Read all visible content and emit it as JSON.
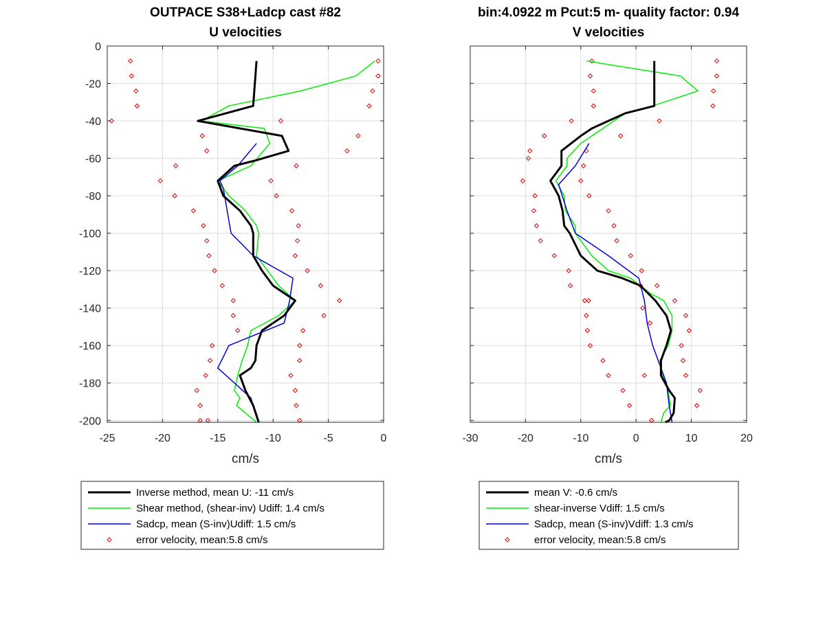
{
  "chart_data": [
    {
      "type": "line",
      "title": "OUTPACE S38+Ladcp cast #82",
      "subtitle": "U velocities",
      "xlabel": "cm/s",
      "ylabel": "",
      "xlim": [
        -25,
        0
      ],
      "ylim": [
        -201,
        0
      ],
      "xticks": [
        "-25",
        "-20",
        "-15",
        "-10",
        "-5",
        "0"
      ],
      "yticks": [
        "0",
        "-20",
        "-40",
        "-60",
        "-80",
        "-100",
        "-120",
        "-140",
        "-160",
        "-180",
        "-200"
      ],
      "grid": true,
      "legend_position": "below",
      "series": [
        {
          "name": "Inverse method, mean U:  -11 cm/s",
          "color": "#000000",
          "style": "line",
          "x": [
            -11.5,
            -11.6,
            -11.8,
            -16.8,
            -9.2,
            -8.6,
            -11.5,
            -13.5,
            -15.0,
            -14.5,
            -13.0,
            -12.0,
            -11.8,
            -11.8,
            -11.0,
            -10.0,
            -9.0,
            -8.0,
            -9.0,
            -11.0,
            -11.5,
            -11.6,
            -12.0,
            -13.0,
            -12.5,
            -11.8,
            -11.3
          ],
          "y": [
            -8,
            -16,
            -32,
            -40,
            -48,
            -56,
            -61,
            -64,
            -72,
            -80,
            -88,
            -96,
            -100,
            -112,
            -120,
            -128,
            -132,
            -136,
            -144,
            -152,
            -160,
            -168,
            -172,
            -176,
            -184,
            -192,
            -201
          ]
        },
        {
          "name": "Shear method, (shear-inv)  Udiff:  1.4 cm/s",
          "color": "#00ee00",
          "style": "line",
          "x": [
            -0.8,
            -2.5,
            -7.5,
            -14.0,
            -16.5,
            -10.8,
            -10.3,
            -12.0,
            -15.0,
            -14.0,
            -12.5,
            -11.5,
            -11.3,
            -11.5,
            -10.5,
            -9.5,
            -8.0,
            -9.5,
            -12.0,
            -12.3,
            -12.8,
            -13.0,
            -13.2,
            -13.5,
            -13.0,
            -13.3,
            -11.5
          ],
          "y": [
            -8,
            -16,
            -24,
            -32,
            -40,
            -44,
            -52,
            -64,
            -72,
            -80,
            -88,
            -96,
            -100,
            -112,
            -120,
            -128,
            -136,
            -144,
            -152,
            -160,
            -168,
            -172,
            -176,
            -184,
            -188,
            -192,
            -201
          ]
        },
        {
          "name": "Sadcp, mean (S-inv)Udiff: 1.5 cm/s",
          "color": "#0000dd",
          "style": "line",
          "x": [
            -11.5,
            -13.2,
            -14.8,
            -14.5,
            -13.8,
            -11.8,
            -8.2,
            -8.5,
            -9.0,
            -14.0,
            -15.0,
            -13.5,
            -12.0,
            -11.6
          ],
          "y": [
            -52,
            -64,
            -72,
            -76,
            -100,
            -112,
            -124,
            -136,
            -148,
            -160,
            -172,
            -180,
            -188,
            -196
          ]
        },
        {
          "name": "error velocity, mean:5.8 cm/s",
          "color": "#dd0000",
          "style": "markers",
          "x": [
            -22.9,
            -22.8,
            -22.4,
            -22.3,
            -24.6,
            -16.4,
            -16.0,
            -18.8,
            -20.2,
            -18.9,
            -17.2,
            -16.3,
            -16.0,
            -15.8,
            -15.3,
            -14.6,
            -13.6,
            -13.6,
            -13.2,
            -15.5,
            -15.7,
            -16.1,
            -16.9,
            -16.6,
            -16.6,
            -15.9,
            -0.5,
            -0.5,
            -1.0,
            -1.3,
            -9.3,
            -2.3,
            -3.3,
            -7.9,
            -10.2,
            -9.7,
            -8.3,
            -7.7,
            -7.8,
            -8.0,
            -6.9,
            -5.7,
            -4.0,
            -5.4,
            -7.3,
            -7.6,
            -7.6,
            -8.4,
            -8.0,
            -7.9,
            -7.6
          ],
          "y": [
            -8,
            -16,
            -24,
            -32,
            -40,
            -48,
            -56,
            -64,
            -72,
            -80,
            -88,
            -96,
            -104,
            -112,
            -120,
            -128,
            -136,
            -144,
            -152,
            -160,
            -168,
            -176,
            -184,
            -192,
            -200,
            -200,
            -8,
            -16,
            -24,
            -32,
            -40,
            -48,
            -56,
            -64,
            -72,
            -80,
            -88,
            -96,
            -104,
            -112,
            -120,
            -128,
            -136,
            -144,
            -152,
            -160,
            -168,
            -176,
            -184,
            -192,
            -200
          ]
        }
      ]
    },
    {
      "type": "line",
      "title": "bin:4.0922 m  Pcut:5 m- quality factor:  0.94",
      "subtitle": "V velocities",
      "xlabel": "cm/s",
      "ylabel": "",
      "xlim": [
        -30,
        20
      ],
      "ylim": [
        -201,
        0
      ],
      "xticks": [
        "-30",
        "-20",
        "-10",
        "0",
        "10",
        "20"
      ],
      "yticks": [],
      "grid": true,
      "legend_position": "below",
      "series": [
        {
          "name": "mean V:  -0.6 cm/s",
          "color": "#000000",
          "style": "line",
          "x": [
            3.3,
            3.3,
            3.3,
            3.3,
            -2.0,
            -8.0,
            -10.0,
            -13.5,
            -13.5,
            -15.5,
            -14.0,
            -13.3,
            -13.0,
            -12.0,
            -10.0,
            -7.0,
            -2.5,
            0.8,
            3.5,
            5.5,
            6.3,
            5.5,
            4.5,
            4.5,
            6.0,
            7.0,
            6.8,
            6.0,
            5.3
          ],
          "y": [
            -8,
            -16,
            -24,
            -32,
            -36,
            -44,
            -48,
            -56,
            -64,
            -72,
            -80,
            -88,
            -96,
            -100,
            -112,
            -120,
            -124,
            -128,
            -136,
            -144,
            -152,
            -160,
            -168,
            -176,
            -184,
            -188,
            -196,
            -200,
            -201
          ]
        },
        {
          "name": "shear-inverse Vdiff:  1.5 cm/s",
          "color": "#00ee00",
          "style": "line",
          "x": [
            -9.0,
            8.0,
            11.2,
            3.0,
            -2.0,
            -6.0,
            -10.0,
            -12.5,
            -12.5,
            -14.5,
            -13.0,
            -12.8,
            -11.0,
            -11.0,
            -8.0,
            -5.0,
            -1.0,
            2.5,
            5.0,
            6.5,
            6.5,
            5.8,
            4.3,
            4.8,
            5.8,
            6.2,
            5.0,
            4.5
          ],
          "y": [
            -8,
            -16,
            -24,
            -32,
            -36,
            -44,
            -52,
            -60,
            -64,
            -72,
            -80,
            -88,
            -96,
            -100,
            -112,
            -120,
            -124,
            -132,
            -136,
            -144,
            -152,
            -160,
            -168,
            -176,
            -184,
            -192,
            -196,
            -201
          ]
        },
        {
          "name": "Sadcp, mean (S-inv)Vdiff: 1.3 cm/s",
          "color": "#0000dd",
          "style": "line",
          "x": [
            -8.5,
            -11.0,
            -14.0,
            -12.5,
            -11.0,
            -5.0,
            0.5,
            1.5,
            2.0,
            3.0,
            4.0,
            5.5,
            6.0,
            6.5
          ],
          "y": [
            -52,
            -64,
            -74,
            -88,
            -100,
            -112,
            -124,
            -136,
            -148,
            -160,
            -168,
            -180,
            -192,
            -201
          ]
        },
        {
          "name": "error velocity, mean:5.8 cm/s",
          "color": "#dd0000",
          "style": "markers",
          "x": [
            -8.0,
            -8.3,
            -7.7,
            -7.7,
            -11.7,
            -16.6,
            -19.2,
            -19.5,
            -20.5,
            -18.3,
            -18.5,
            -18.0,
            -17.3,
            -14.8,
            -12.2,
            -11.9,
            -8.6,
            -9.3,
            -9.0,
            -8.8,
            -8.3,
            -6.0,
            -5.0,
            -2.4,
            -1.2,
            2.8,
            1.0,
            0.8,
            1.2,
            2.5,
            1.5,
            14.6,
            14.6,
            14.0,
            13.9,
            4.2,
            -2.8,
            -9.0,
            -9.5,
            -10.0,
            -8.5,
            -5.0,
            -4.0,
            -3.5,
            -1.0,
            3.8,
            7.0,
            9.0,
            9.6,
            8.2,
            8.5,
            9.0,
            11.6,
            11.0
          ],
          "y": [
            -8,
            -16,
            -24,
            -32,
            -40,
            -48,
            -56,
            -60,
            -72,
            -80,
            -88,
            -96,
            -104,
            -112,
            -120,
            -128,
            -136,
            -136,
            -144,
            -152,
            -160,
            -168,
            -176,
            -184,
            -192,
            -200,
            -120,
            -128,
            -140,
            -148,
            -176,
            -8,
            -16,
            -24,
            -32,
            -40,
            -48,
            -56,
            -64,
            -72,
            -80,
            -88,
            -96,
            -104,
            -112,
            -128,
            -136,
            -144,
            -152,
            -160,
            -168,
            -176,
            -184,
            -192
          ]
        }
      ]
    }
  ]
}
